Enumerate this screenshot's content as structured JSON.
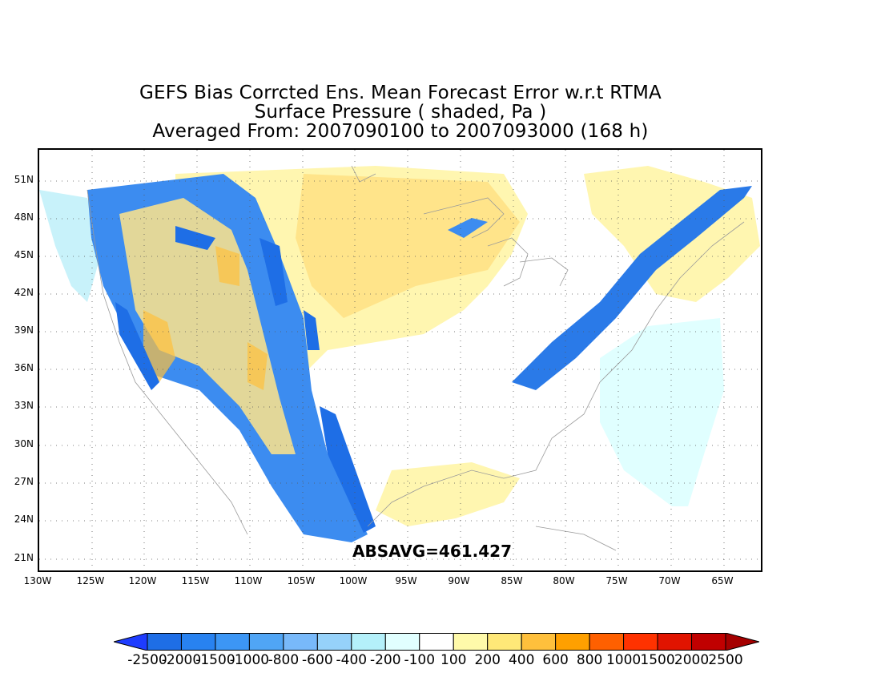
{
  "titles": {
    "line1": "GEFS Bias Corrcted Ens. Mean Forecast Error w.r.t RTMA",
    "line2": "Surface Pressure ( shaded, Pa )",
    "line3": "Averaged From: 2007090100 to 2007093000 (168 h)"
  },
  "map": {
    "lat_labels": [
      "51N",
      "48N",
      "45N",
      "42N",
      "39N",
      "36N",
      "33N",
      "30N",
      "27N",
      "24N",
      "21N"
    ],
    "lon_labels": [
      "130W",
      "125W",
      "120W",
      "115W",
      "110W",
      "105W",
      "100W",
      "95W",
      "90W",
      "85W",
      "80W",
      "75W",
      "70W",
      "65W"
    ],
    "absavg": "ABSAVG=461.427",
    "colors": {
      "negative_strong": "#1e6ee6",
      "negative_mid": "#3c8cf0",
      "negative_light": "#a0d2fa",
      "negative_faint": "#e0ffff",
      "positive_faint": "#fffaaa",
      "positive_light": "#ffe878",
      "positive_mid": "#ffc03c",
      "coastline": "#9a9a9a"
    }
  },
  "colorbar": {
    "labels": [
      "-2500",
      "-2000",
      "-1500",
      "-1000",
      "-800",
      "-600",
      "-400",
      "-200",
      "-100",
      "100",
      "200",
      "400",
      "600",
      "800",
      "1000",
      "1500",
      "2000",
      "2500"
    ],
    "colors": [
      "#1e3cff",
      "#1e6ee6",
      "#2882f0",
      "#3c96f5",
      "#50a5f5",
      "#78b9fa",
      "#96d2fa",
      "#b4f0fa",
      "#e1ffff",
      "#ffffff",
      "#fffaaa",
      "#ffe878",
      "#ffc03c",
      "#ffa000",
      "#ff6000",
      "#ff3200",
      "#e11400",
      "#c00000",
      "#a50000"
    ]
  }
}
